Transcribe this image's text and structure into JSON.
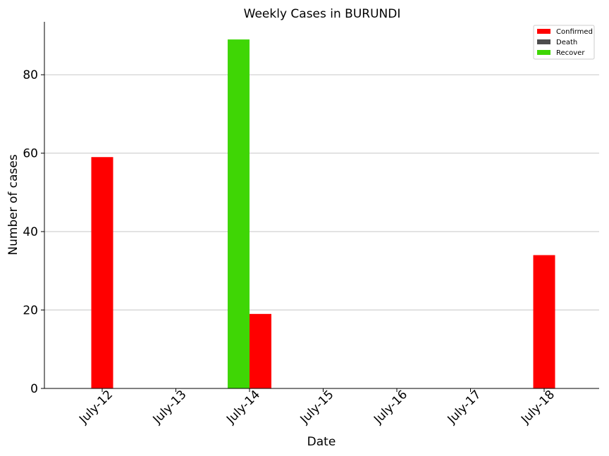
{
  "chart_data": {
    "type": "bar",
    "title": "Weekly Cases in BURUNDI",
    "xlabel": "Date",
    "ylabel": "Number of cases",
    "categories": [
      "July-12",
      "July-13",
      "July-14",
      "July-15",
      "July-16",
      "July-17",
      "July-18"
    ],
    "series": [
      {
        "name": "Confirmed",
        "color": "#ff0000",
        "values": [
          59,
          0,
          19,
          0,
          0,
          0,
          34
        ]
      },
      {
        "name": "Death",
        "color": "#4d4d4d",
        "values": [
          0,
          0,
          0,
          0,
          0,
          0,
          0
        ]
      },
      {
        "name": "Recover",
        "color": "#3fd605",
        "values": [
          0,
          0,
          89,
          0,
          0,
          0,
          0
        ]
      }
    ],
    "ylim": [
      0,
      93.5
    ],
    "yticks": [
      0,
      20,
      40,
      60,
      80
    ],
    "grid": "horizontal",
    "legend": "top-right"
  }
}
